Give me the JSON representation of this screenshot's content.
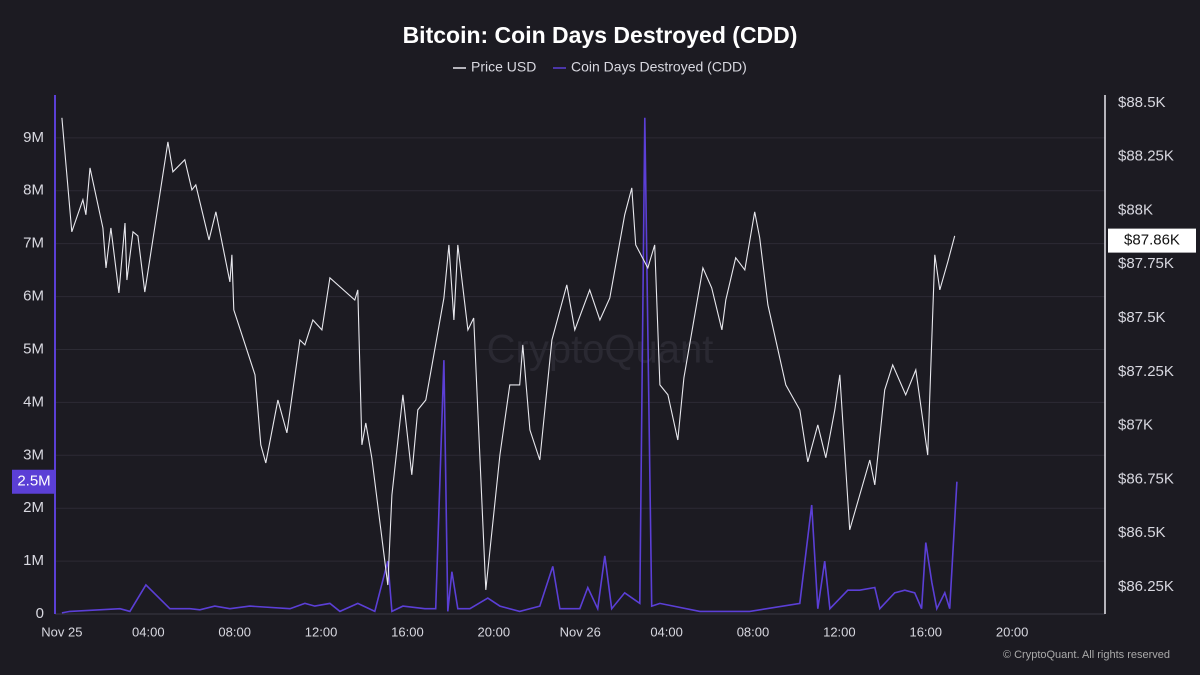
{
  "chart_data": {
    "type": "line",
    "title": "Bitcoin: Coin Days Destroyed (CDD)",
    "watermark": "CryptoQuant",
    "copyright": "© CryptoQuant. All rights reserved",
    "xlim": [
      -0.32,
      48.3
    ],
    "xticks": [
      {
        "value": 0,
        "label": "Nov 25"
      },
      {
        "value": 4,
        "label": "04:00"
      },
      {
        "value": 8,
        "label": "08:00"
      },
      {
        "value": 12,
        "label": "12:00"
      },
      {
        "value": 16,
        "label": "16:00"
      },
      {
        "value": 20,
        "label": "20:00"
      },
      {
        "value": 24,
        "label": "Nov 26"
      },
      {
        "value": 28,
        "label": "04:00"
      },
      {
        "value": 32,
        "label": "08:00"
      },
      {
        "value": 36,
        "label": "12:00"
      },
      {
        "value": 40,
        "label": "16:00"
      },
      {
        "value": 44,
        "label": "20:00"
      }
    ],
    "ylim": [
      0,
      9810000
    ],
    "yticks": [
      0,
      {
        "value": 1000000,
        "label": "1M"
      },
      {
        "value": 2000000,
        "label": "2M"
      },
      {
        "value": 3000000,
        "label": "3M"
      },
      {
        "value": 4000000,
        "label": "4M"
      },
      {
        "value": 5000000,
        "label": "5M"
      },
      {
        "value": 6000000,
        "label": "6M"
      },
      {
        "value": 7000000,
        "label": "7M"
      },
      {
        "value": 8000000,
        "label": "8M"
      },
      {
        "value": 9000000,
        "label": "9M"
      }
    ],
    "y2lim": [
      86124,
      88537
    ],
    "y2ticks": [
      {
        "value": 86250,
        "label": "$86.25K"
      },
      {
        "value": 86500,
        "label": "$86.5K"
      },
      {
        "value": 86750,
        "label": "$86.75K"
      },
      {
        "value": 87000,
        "label": "$87K"
      },
      {
        "value": 87250,
        "label": "$87.25K"
      },
      {
        "value": 87500,
        "label": "$87.5K"
      },
      {
        "value": 87750,
        "label": "$87.75K"
      },
      {
        "value": 88000,
        "label": "$88K"
      },
      {
        "value": 88250,
        "label": "$88.25K"
      },
      {
        "value": 88500,
        "label": "$88.5K"
      }
    ],
    "grid": true,
    "last_price": {
      "value": 87860,
      "label": "$87.86K"
    },
    "last_cdd": {
      "value": 2500000,
      "label": "2.5M"
    },
    "series": [
      {
        "name": "Price USD",
        "color": "#e8e8ee",
        "axis": "y2",
        "x": [
          0,
          0.46,
          0.97,
          1.11,
          1.3,
          1.9,
          2.04,
          2.27,
          2.64,
          2.92,
          3.01,
          3.29,
          3.52,
          3.84,
          4.91,
          5.14,
          5.69,
          6.02,
          6.2,
          6.81,
          7.13,
          7.78,
          7.87,
          7.96,
          8.94,
          9.21,
          9.44,
          10.0,
          10.42,
          11.02,
          11.25,
          11.62,
          12.04,
          12.41,
          13.56,
          13.7,
          13.89,
          14.07,
          14.35,
          15.09,
          15.28,
          15.79,
          16.2,
          16.48,
          16.85,
          17.69,
          17.92,
          18.15,
          18.33,
          18.8,
          19.07,
          19.63,
          20.28,
          20.74,
          21.2,
          21.34,
          21.67,
          22.13,
          22.69,
          23.38,
          23.75,
          24.44,
          24.91,
          25.37,
          26.06,
          26.39,
          26.57,
          27.13,
          27.45,
          27.69,
          28.06,
          28.52,
          28.8,
          29.68,
          30.09,
          30.56,
          30.74,
          31.2,
          31.62,
          32.08,
          32.31,
          32.69,
          33.52,
          34.17,
          34.54,
          35.0,
          35.37,
          35.79,
          36.02,
          36.48,
          37.41,
          37.64,
          38.1,
          38.47,
          39.07,
          39.54,
          40.09,
          40.42,
          40.65,
          41.02,
          41.34
        ],
        "values": [
          88431,
          87901,
          88050,
          87980,
          88198,
          87919,
          87733,
          87919,
          87617,
          87942,
          87677,
          87901,
          87882,
          87621,
          88319,
          88180,
          88236,
          88096,
          88119,
          87863,
          87994,
          87668,
          87794,
          87538,
          87236,
          86910,
          86826,
          87119,
          86966,
          87398,
          87375,
          87491,
          87445,
          87687,
          87584,
          87631,
          86910,
          87012,
          86850,
          86259,
          86677,
          87143,
          86771,
          87073,
          87119,
          87593,
          87840,
          87491,
          87840,
          87445,
          87500,
          86236,
          86863,
          87189,
          87189,
          87375,
          86980,
          86840,
          87398,
          87654,
          87445,
          87631,
          87491,
          87593,
          87980,
          88105,
          87840,
          87733,
          87840,
          87189,
          87143,
          86933,
          87222,
          87733,
          87640,
          87445,
          87584,
          87780,
          87724,
          87994,
          87873,
          87561,
          87189,
          87073,
          86831,
          87003,
          86850,
          87073,
          87236,
          86515,
          86840,
          86724,
          87166,
          87282,
          87143,
          87259,
          86863,
          87794,
          87631,
          87761,
          87882
        ]
      },
      {
        "name": "Coin Days Destroyed (CDD)",
        "color": "#5b3fd6",
        "x": [
          0,
          0.37,
          2.69,
          3.15,
          3.89,
          5.0,
          5.93,
          6.39,
          7.08,
          7.78,
          8.7,
          10.56,
          11.25,
          11.71,
          12.41,
          12.87,
          13.7,
          14.49,
          15.09,
          15.28,
          15.79,
          16.81,
          17.31,
          17.69,
          17.87,
          18.06,
          18.33,
          18.89,
          19.72,
          20.28,
          21.2,
          22.13,
          22.73,
          23.06,
          23.98,
          24.35,
          24.81,
          25.14,
          25.46,
          26.06,
          26.76,
          26.99,
          27.31,
          27.69,
          29.54,
          31.85,
          34.17,
          34.72,
          35.0,
          35.32,
          35.56,
          36.39,
          36.94,
          37.64,
          37.87,
          38.56,
          39.03,
          39.49,
          39.81,
          40.0,
          40.28,
          40.51,
          40.88,
          41.11,
          41.44
        ],
        "values": [
          20000,
          50000,
          100000,
          50000,
          550000,
          100000,
          100000,
          80000,
          150000,
          100000,
          150000,
          100000,
          200000,
          150000,
          200000,
          50000,
          200000,
          50000,
          1000000,
          50000,
          150000,
          100000,
          100000,
          4800000,
          50000,
          800000,
          100000,
          100000,
          300000,
          150000,
          50000,
          150000,
          900000,
          100000,
          100000,
          500000,
          100000,
          1100000,
          100000,
          400000,
          200000,
          9380000,
          150000,
          200000,
          50000,
          50000,
          200000,
          2060000,
          100000,
          1000000,
          100000,
          450000,
          450000,
          500000,
          100000,
          400000,
          450000,
          400000,
          100000,
          1350000,
          600000,
          100000,
          400000,
          100000,
          2500000
        ]
      }
    ]
  }
}
